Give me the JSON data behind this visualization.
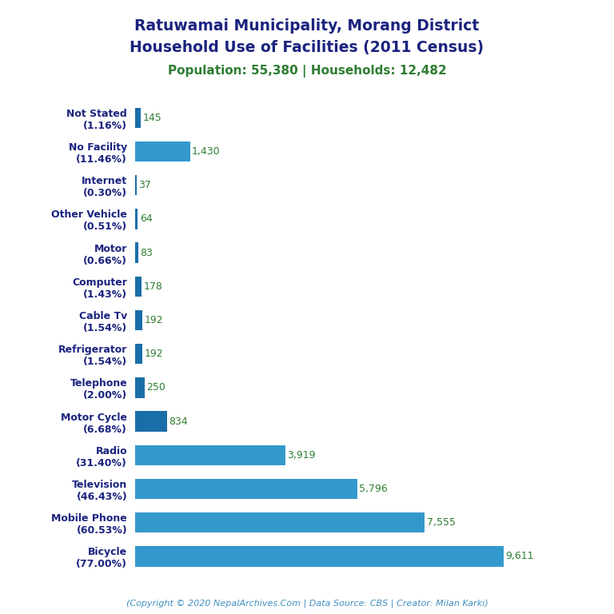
{
  "title_line1": "Ratuwamai Municipality, Morang District",
  "title_line2": "Household Use of Facilities (2011 Census)",
  "subtitle": "Population: 55,380 | Households: 12,482",
  "footer": "(Copyright © 2020 NepalArchives.Com | Data Source: CBS | Creator: Milan Karki)",
  "categories": [
    "Not Stated\n(1.16%)",
    "No Facility\n(11.46%)",
    "Internet\n(0.30%)",
    "Other Vehicle\n(0.51%)",
    "Motor\n(0.66%)",
    "Computer\n(1.43%)",
    "Cable Tv\n(1.54%)",
    "Refrigerator\n(1.54%)",
    "Telephone\n(2.00%)",
    "Motor Cycle\n(6.68%)",
    "Radio\n(31.40%)",
    "Television\n(46.43%)",
    "Mobile Phone\n(60.53%)",
    "Bicycle\n(77.00%)"
  ],
  "values": [
    145,
    1430,
    37,
    64,
    83,
    178,
    192,
    192,
    250,
    834,
    3919,
    5796,
    7555,
    9611
  ],
  "bar_color_small": "#1a6ea8",
  "bar_color_large": "#3399cc",
  "title_color": "#1a237e",
  "subtitle_color": "#2e7d32",
  "footer_color": "#4090c0",
  "value_color": "#2e7d32",
  "label_color": "#1a237e",
  "background_color": "#ffffff",
  "figsize": [
    7.68,
    7.68
  ],
  "dpi": 100
}
